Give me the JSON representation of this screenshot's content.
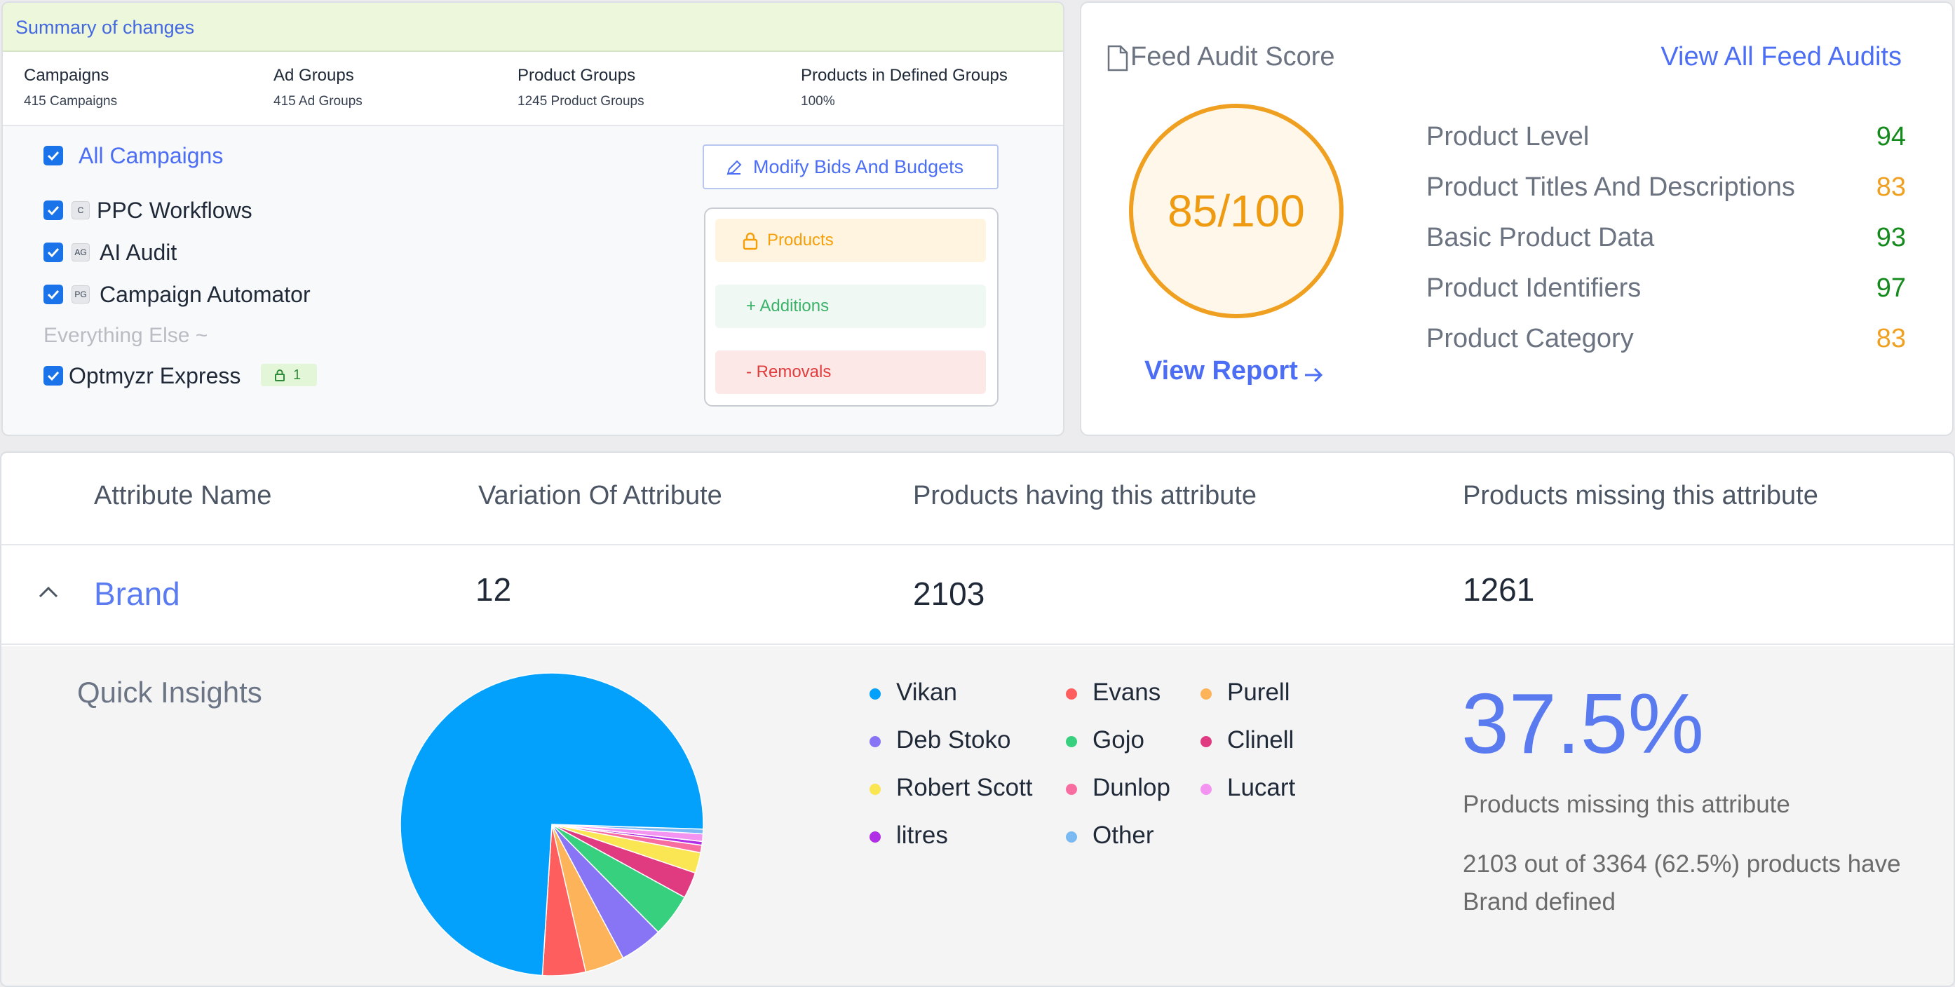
{
  "summary": {
    "title": "Summary of changes",
    "stats": [
      {
        "label": "Campaigns",
        "value": "415 Campaigns"
      },
      {
        "label": "Ad Groups",
        "value": "415 Ad Groups"
      },
      {
        "label": "Product Groups",
        "value": "1245 Product Groups"
      },
      {
        "label": "Products in Defined Groups",
        "value": "100%"
      }
    ],
    "all_campaigns_label": "All Campaigns",
    "campaigns": [
      {
        "tag": "C",
        "label": "PPC Workflows",
        "checked": true
      },
      {
        "tag": "AG",
        "label": "AI Audit",
        "checked": true
      },
      {
        "tag": "PG",
        "label": "Campaign Automator",
        "checked": true
      }
    ],
    "everything_else_label": "Everything Else ~",
    "express": {
      "label": "Optmyzr Express",
      "lock_count": "1",
      "checked": true
    },
    "modify_button": "Modify Bids And Budgets",
    "chips": {
      "products": "Products",
      "additions": "+ Additions",
      "removals": "- Removals"
    }
  },
  "audit": {
    "title": "Feed Audit Score",
    "view_all": "View All Feed Audits",
    "score": "85/100",
    "view_report": "View Report",
    "metrics": [
      {
        "name": "Product Level",
        "score": "94",
        "color": "#148a1c"
      },
      {
        "name": "Product Titles And Descriptions",
        "score": "83",
        "color": "#f0a020"
      },
      {
        "name": "Basic Product Data",
        "score": "93",
        "color": "#148a1c"
      },
      {
        "name": "Product Identifiers",
        "score": "97",
        "color": "#148a1c"
      },
      {
        "name": "Product Category",
        "score": "83",
        "color": "#f0a020"
      }
    ]
  },
  "attributes": {
    "headers": [
      "Attribute Name",
      "Variation Of Attribute",
      "Products having this attribute",
      "Products missing this attribute"
    ],
    "row": {
      "name": "Brand",
      "variation": "12",
      "having": "2103",
      "missing": "1261"
    },
    "insights": {
      "title": "Quick Insights",
      "missing_pct": "37.5%",
      "missing_caption": "Products missing this attribute",
      "detail": "2103 out of 3364 (62.5%) products have Brand defined"
    }
  },
  "chart_data": {
    "type": "pie",
    "title": "",
    "series": [
      {
        "label": "Vikan",
        "value": 74.5,
        "color": "#03a1fc"
      },
      {
        "label": "Evans",
        "value": 4.6,
        "color": "#fe5e5e"
      },
      {
        "label": "Purell",
        "value": 4.2,
        "color": "#fdb359"
      },
      {
        "label": "Deb Stoko",
        "value": 4.6,
        "color": "#8775f6"
      },
      {
        "label": "Gojo",
        "value": 4.6,
        "color": "#37d07e"
      },
      {
        "label": "Clinell",
        "value": 2.8,
        "color": "#e03b81"
      },
      {
        "label": "Robert Scott",
        "value": 2.2,
        "color": "#fae652"
      },
      {
        "label": "Dunlop",
        "value": 0.8,
        "color": "#f86d9f"
      },
      {
        "label": "Lucart",
        "value": 0.8,
        "color": "#f394f0"
      },
      {
        "label": "litres",
        "value": 0.4,
        "color": "#b02ee5"
      },
      {
        "label": "Other",
        "value": 0.5,
        "color": "#7ab9f2"
      }
    ],
    "legend_position": "right"
  }
}
